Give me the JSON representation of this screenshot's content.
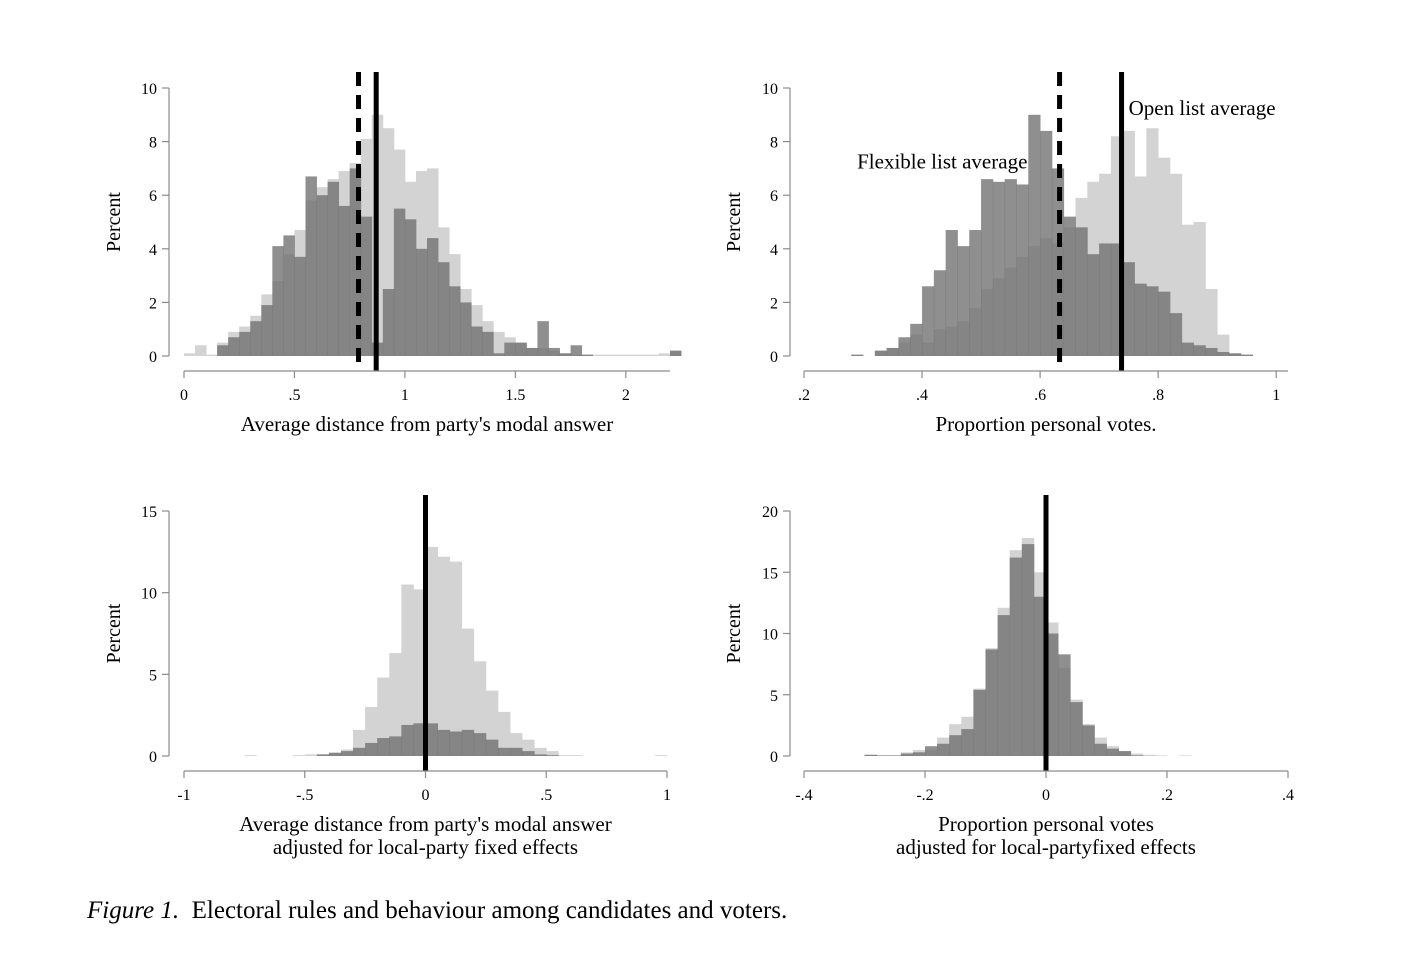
{
  "caption": {
    "label": "Figure 1.",
    "text": "Electoral rules and behaviour among candidates and voters."
  },
  "colors": {
    "light": "#d3d3d3",
    "dark": "#8a8a8a",
    "overlap": "#828282",
    "axis": "#8c8c8c",
    "line": "#000000"
  },
  "chart_data": [
    {
      "type": "bar",
      "panel": "top-left",
      "ylabel": "Percent",
      "xlabel_lines": [
        "Average distance from party's modal answer"
      ],
      "xlim": [
        0,
        2.2
      ],
      "ylim": [
        0,
        10
      ],
      "xticks": [
        {
          "v": 0,
          "label": "0"
        },
        {
          "v": 0.5,
          "label": ".5"
        },
        {
          "v": 1,
          "label": "1"
        },
        {
          "v": 1.5,
          "label": "1.5"
        },
        {
          "v": 2,
          "label": "2"
        }
      ],
      "yticks": [
        {
          "v": 0,
          "label": "0"
        },
        {
          "v": 2,
          "label": "2"
        },
        {
          "v": 4,
          "label": "4"
        },
        {
          "v": 6,
          "label": "6"
        },
        {
          "v": 8,
          "label": "8"
        },
        {
          "v": 10,
          "label": "10"
        }
      ],
      "series": [
        {
          "name": "Open list",
          "shade": "light",
          "start": 0,
          "width": 0.05,
          "values": [
            0.1,
            0.4,
            0.05,
            0.5,
            0.9,
            1.1,
            1.5,
            2.3,
            2.8,
            3.8,
            4.7,
            5.8,
            6.3,
            6.6,
            6.9,
            7.2,
            8.1,
            9.0,
            8.5,
            7.7,
            6.5,
            6.9,
            7.0,
            4.8,
            3.8,
            2.5,
            1.9,
            1.3,
            0.9,
            0.7,
            0.5,
            0.3,
            0.3,
            0.2,
            0.1,
            0.05,
            0.05,
            0.05,
            0.05,
            0.05,
            0.05,
            0.05,
            0.05,
            0.1,
            0.2
          ]
        },
        {
          "name": "Flexible list",
          "shade": "dark",
          "start": 0,
          "width": 0.05,
          "values": [
            0,
            0,
            0,
            0.4,
            0.7,
            0.9,
            1.3,
            1.9,
            4.1,
            4.5,
            3.7,
            6.7,
            6.0,
            6.5,
            5.6,
            7.0,
            5.2,
            0.5,
            2.5,
            5.5,
            5.1,
            4.0,
            4.4,
            3.5,
            2.6,
            2.0,
            1.1,
            0.9,
            0.1,
            0.5,
            0.5,
            0.3,
            1.3,
            0.3,
            0.1,
            0.4,
            0.05,
            0,
            0,
            0,
            0,
            0,
            0,
            0,
            0.2
          ]
        }
      ],
      "vlines": [
        {
          "name": "Flexible list average",
          "x": 0.79,
          "style": "dashed"
        },
        {
          "name": "Open list average",
          "x": 0.87,
          "style": "solid"
        }
      ],
      "annotations": []
    },
    {
      "type": "bar",
      "panel": "top-right",
      "ylabel": "Percent",
      "xlabel_lines": [
        "Proportion personal votes."
      ],
      "xlim": [
        0.2,
        1.02
      ],
      "ylim": [
        0,
        10
      ],
      "xticks": [
        {
          "v": 0.2,
          "label": ".2"
        },
        {
          "v": 0.4,
          "label": ".4"
        },
        {
          "v": 0.6,
          "label": ".6"
        },
        {
          "v": 0.8,
          "label": ".8"
        },
        {
          "v": 1,
          "label": "1"
        }
      ],
      "yticks": [
        {
          "v": 0,
          "label": "0"
        },
        {
          "v": 2,
          "label": "2"
        },
        {
          "v": 4,
          "label": "4"
        },
        {
          "v": 6,
          "label": "6"
        },
        {
          "v": 8,
          "label": "8"
        },
        {
          "v": 10,
          "label": "10"
        }
      ],
      "series": [
        {
          "name": "Open list",
          "shade": "light",
          "start": 0.26,
          "width": 0.02,
          "values": [
            0,
            0.05,
            0,
            0.2,
            0.3,
            0.5,
            0.8,
            0.5,
            1.0,
            1.1,
            1.3,
            1.8,
            2.5,
            2.9,
            3.3,
            3.7,
            4.1,
            4.4,
            4.2,
            4.8,
            5.9,
            6.5,
            6.8,
            8.2,
            8.4,
            6.7,
            8.5,
            7.4,
            6.8,
            4.9,
            5.0,
            2.5,
            0.8,
            0.1,
            0.05
          ]
        },
        {
          "name": "Flexible list",
          "shade": "dark",
          "start": 0.26,
          "width": 0.02,
          "values": [
            0,
            0.05,
            0,
            0.2,
            0.3,
            0.7,
            1.2,
            2.6,
            3.2,
            4.7,
            4.1,
            4.7,
            6.6,
            6.5,
            6.6,
            6.4,
            9.0,
            8.4,
            7.0,
            5.2,
            4.8,
            3.8,
            4.2,
            4.2,
            3.5,
            2.7,
            2.6,
            2.4,
            1.6,
            0.5,
            0.4,
            0.3,
            0.15,
            0.1,
            0.05
          ]
        }
      ],
      "vlines": [
        {
          "name": "Flexible list average",
          "x": 0.633,
          "style": "dashed"
        },
        {
          "name": "Open list average",
          "x": 0.738,
          "style": "solid"
        }
      ],
      "annotations": [
        {
          "text": "Open list average",
          "x": 0.75,
          "y": 9.0
        },
        {
          "text": "Flexible list average",
          "x": 0.29,
          "y": 7.0
        }
      ]
    },
    {
      "type": "bar",
      "panel": "bottom-left",
      "ylabel": "Percent",
      "xlabel_lines": [
        "Average distance from party's modal answer",
        "adjusted for local-party fixed effects"
      ],
      "xlim": [
        -1,
        1
      ],
      "ylim": [
        0,
        15
      ],
      "xticks": [
        {
          "v": -1,
          "label": "-1"
        },
        {
          "v": -0.5,
          "label": "-.5"
        },
        {
          "v": 0,
          "label": "0"
        },
        {
          "v": 0.5,
          "label": ".5"
        },
        {
          "v": 1,
          "label": "1"
        }
      ],
      "yticks": [
        {
          "v": 0,
          "label": "0"
        },
        {
          "v": 5,
          "label": "5"
        },
        {
          "v": 10,
          "label": "10"
        },
        {
          "v": 15,
          "label": "15"
        }
      ],
      "series": [
        {
          "name": "Open list",
          "shade": "light",
          "start": -0.8,
          "width": 0.05,
          "values": [
            0,
            0.05,
            0,
            0,
            0,
            0.05,
            0.1,
            0.1,
            0.2,
            0.4,
            1.6,
            3.0,
            4.8,
            6.3,
            10.5,
            10.2,
            12.8,
            12.2,
            11.9,
            7.8,
            5.8,
            4.0,
            2.7,
            1.4,
            1.0,
            0.5,
            0.3,
            0.05,
            0.05,
            0,
            0,
            0,
            0,
            0,
            0,
            0.05
          ]
        },
        {
          "name": "Flexible list",
          "shade": "dark",
          "start": -0.8,
          "width": 0.05,
          "values": [
            0,
            0,
            0,
            0,
            0,
            0,
            0,
            0.1,
            0.2,
            0.3,
            0.5,
            0.8,
            1.1,
            1.2,
            1.9,
            2.0,
            2.0,
            1.6,
            1.5,
            1.6,
            1.4,
            1.0,
            0.5,
            0.5,
            0.3,
            0.1,
            0.05,
            0,
            0,
            0,
            0,
            0,
            0,
            0,
            0,
            0
          ]
        }
      ],
      "vlines": [
        {
          "name": "Average",
          "x": 0,
          "style": "solid"
        }
      ],
      "annotations": []
    },
    {
      "type": "bar",
      "panel": "bottom-right",
      "ylabel": "Percent",
      "xlabel_lines": [
        "Proportion personal votes",
        "adjusted for local-partyfixed effects"
      ],
      "xlim": [
        -0.4,
        0.4
      ],
      "ylim": [
        0,
        20
      ],
      "xticks": [
        {
          "v": -0.4,
          "label": "-.4"
        },
        {
          "v": -0.2,
          "label": "-.2"
        },
        {
          "v": 0,
          "label": "0"
        },
        {
          "v": 0.2,
          "label": ".2"
        },
        {
          "v": 0.4,
          "label": ".4"
        }
      ],
      "yticks": [
        {
          "v": 0,
          "label": "0"
        },
        {
          "v": 5,
          "label": "5"
        },
        {
          "v": 10,
          "label": "10"
        },
        {
          "v": 15,
          "label": "15"
        },
        {
          "v": 20,
          "label": "20"
        }
      ],
      "series": [
        {
          "name": "Open list",
          "shade": "light",
          "start": -0.3,
          "width": 0.02,
          "values": [
            0.1,
            0.05,
            0.05,
            0.3,
            0.5,
            0.5,
            1.5,
            2.6,
            3.2,
            5.5,
            8.8,
            12.1,
            16.8,
            17.8,
            15.0,
            10.9,
            7.2,
            4.6,
            2.6,
            1.5,
            0.8,
            0.4,
            0.2,
            0.1,
            0.05,
            0,
            0.05
          ]
        },
        {
          "name": "Flexible list",
          "shade": "dark",
          "start": -0.3,
          "width": 0.02,
          "values": [
            0.1,
            0.05,
            0.05,
            0.2,
            0.3,
            0.8,
            1.0,
            1.7,
            2.2,
            5.4,
            8.7,
            11.5,
            16.2,
            17.3,
            13.0,
            10.0,
            8.3,
            4.4,
            2.5,
            1.0,
            0.6,
            0.4,
            0.05,
            0,
            0,
            0,
            0
          ]
        }
      ],
      "vlines": [
        {
          "name": "Average",
          "x": 0,
          "style": "solid"
        }
      ],
      "annotations": []
    }
  ]
}
